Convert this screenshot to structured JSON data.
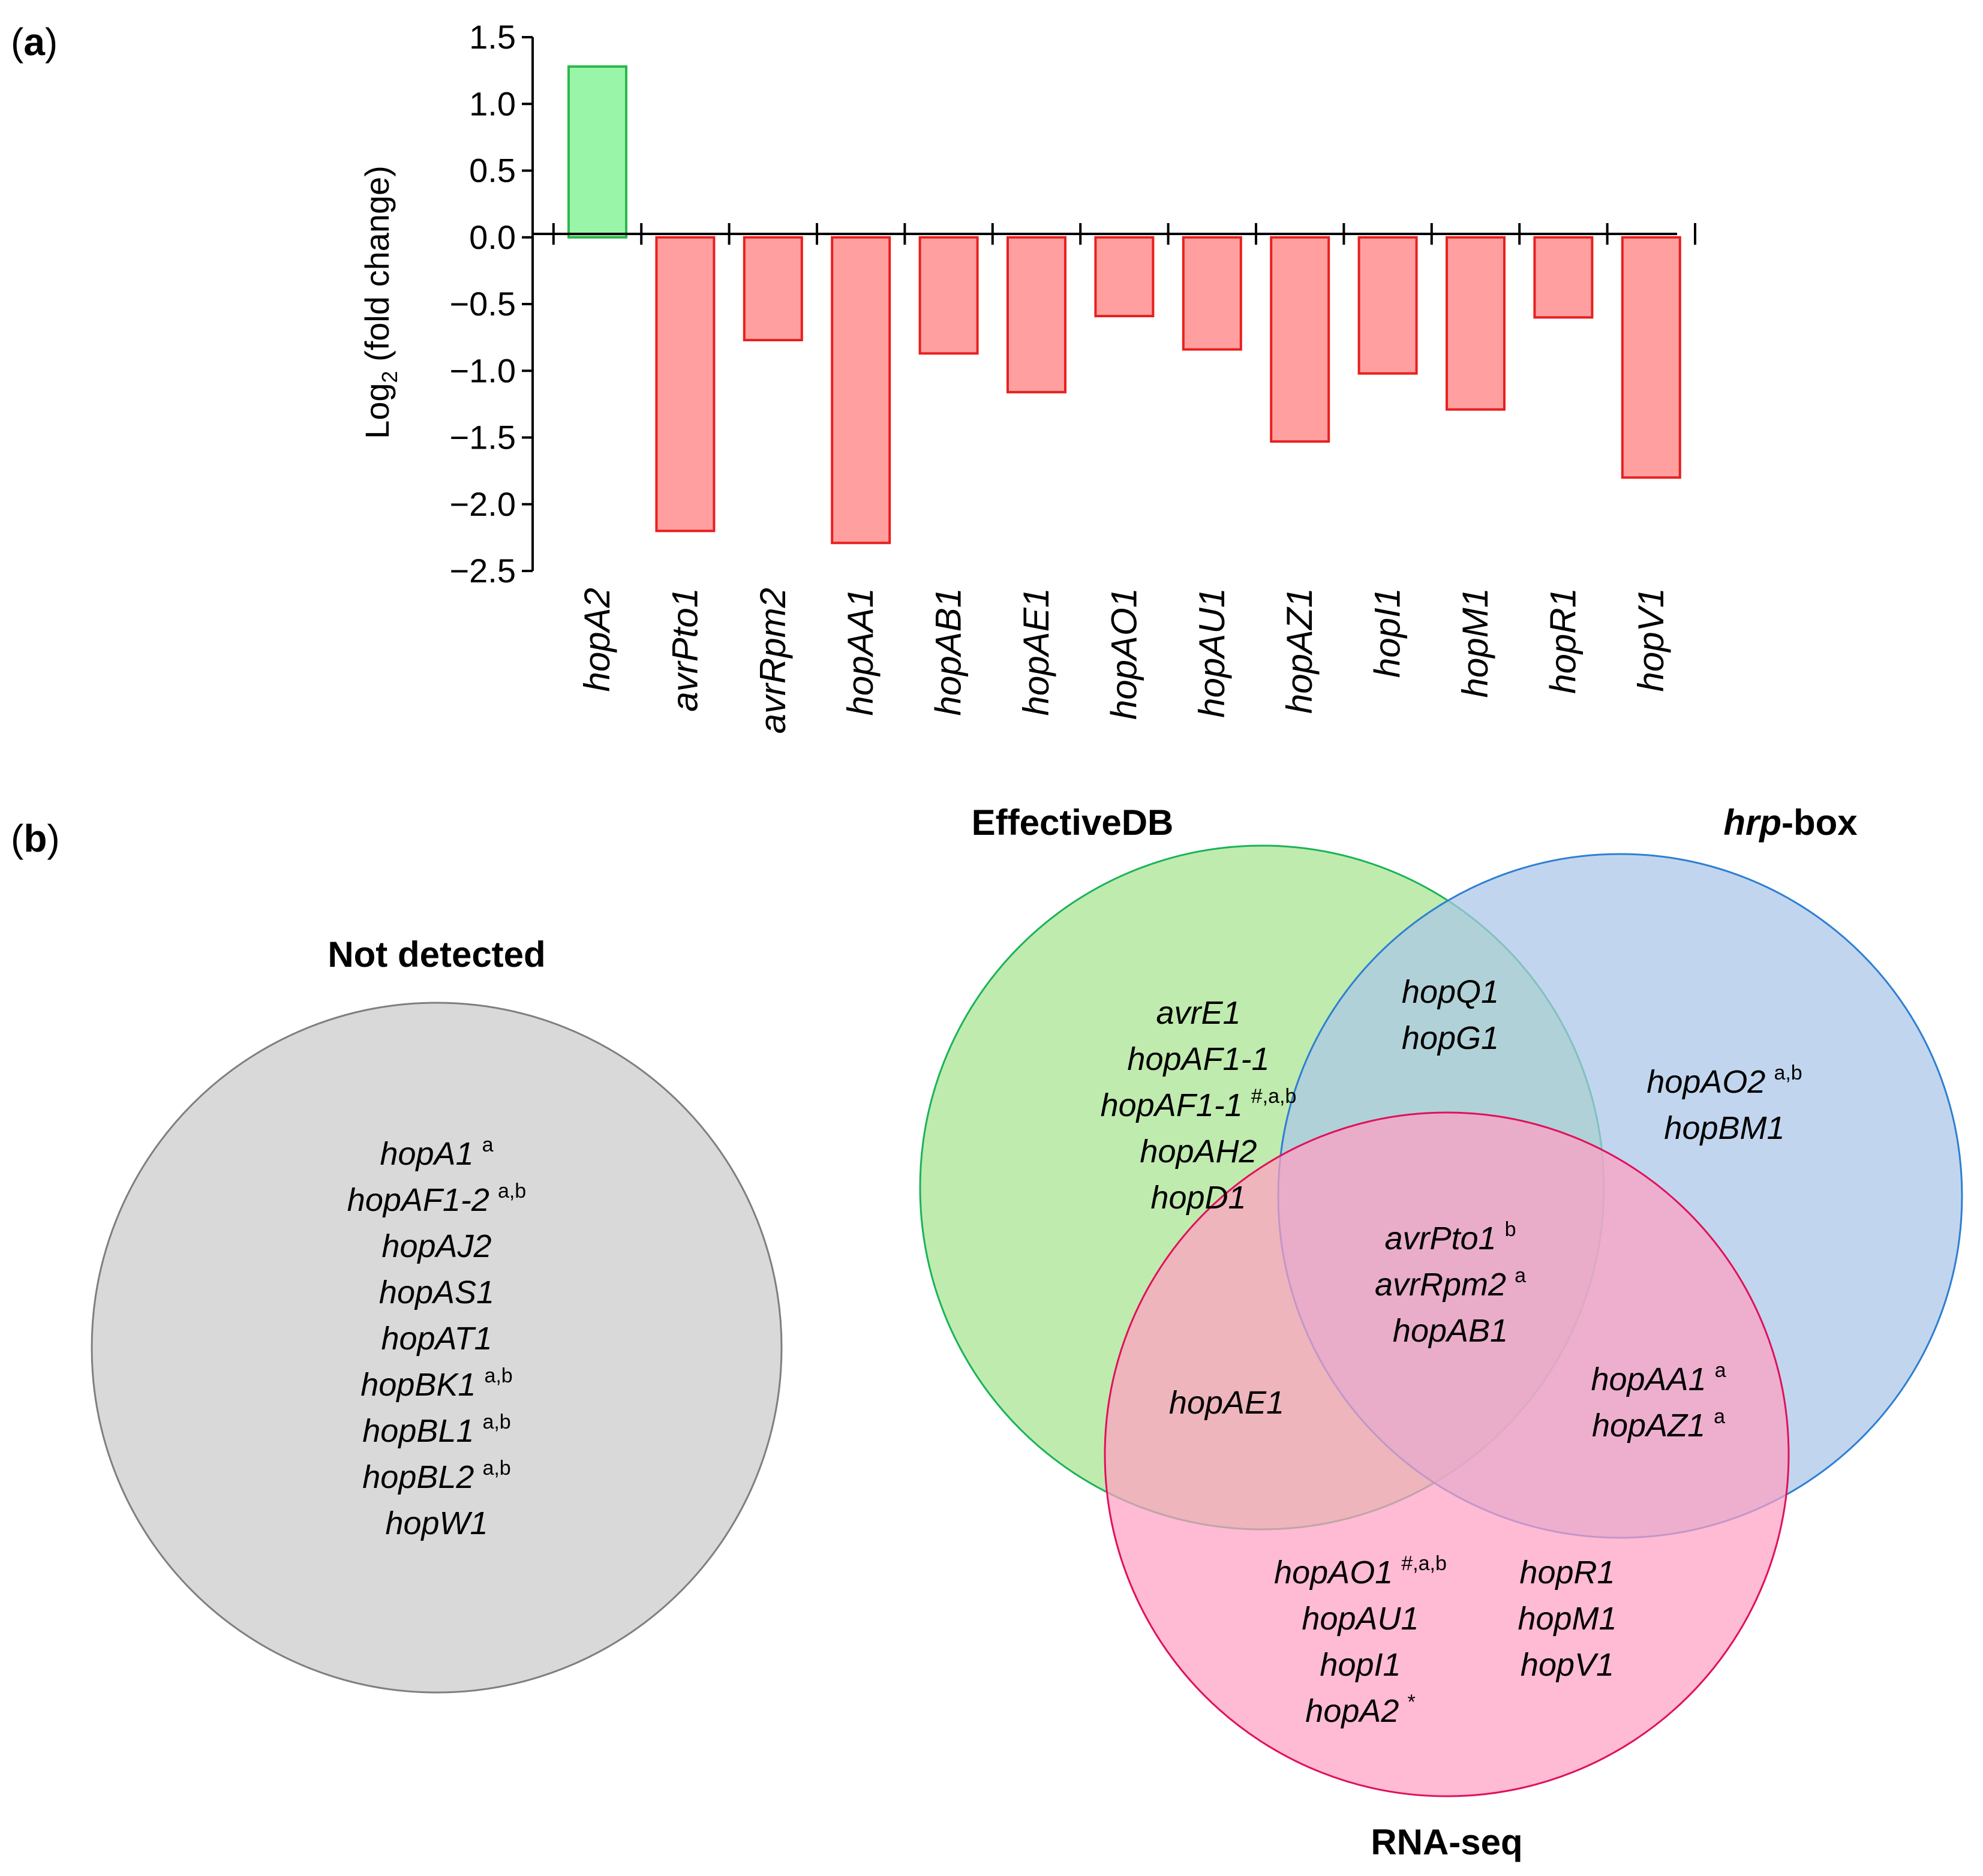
{
  "panel_a": {
    "label_open": "(",
    "label_letter": "a",
    "label_close": ")"
  },
  "panel_b": {
    "label_open": "(",
    "label_letter": "b",
    "label_close": ")"
  },
  "chart_data": {
    "type": "bar",
    "title": "",
    "xlabel": "",
    "ylabel_prefix": "Log",
    "ylabel_sub": "2",
    "ylabel_suffix": " (fold change)",
    "ylim": [
      -2.5,
      1.5
    ],
    "yticks": [
      1.5,
      1.0,
      0.5,
      0.0,
      -0.5,
      -1.0,
      -1.5,
      -2.0,
      -2.5
    ],
    "ytick_labels": [
      "1.5",
      "1.0",
      "0.5",
      "0.0",
      "−0.5",
      "−1.0",
      "−1.5",
      "−2.0",
      "−2.5"
    ],
    "categories": [
      "hopA2",
      "avrPto1",
      "avrRpm2",
      "hopAA1",
      "hopAB1",
      "hopAE1",
      "hopAO1",
      "hopAU1",
      "hopAZ1",
      "hopI1",
      "hopM1",
      "hopR1",
      "hopV1"
    ],
    "values": [
      1.28,
      -2.2,
      -0.77,
      -2.29,
      -0.87,
      -1.16,
      -0.59,
      -0.84,
      -1.53,
      -1.02,
      -1.29,
      -0.6,
      -1.8
    ],
    "colors": {
      "positive_fill": "#99f5a8",
      "positive_stroke": "#2ab84c",
      "negative_fill": "#ff9f9f",
      "negative_stroke": "#e8201f"
    },
    "grid": false
  },
  "not_detected": {
    "title": "Not detected",
    "fill": "#d9d9d9",
    "stroke": "#7f7f7f",
    "genes": [
      {
        "name": "hopA1",
        "sup": "a"
      },
      {
        "name": "hopAF1-2",
        "sup": "a,b"
      },
      {
        "name": "hopAJ2",
        "sup": ""
      },
      {
        "name": "hopAS1",
        "sup": ""
      },
      {
        "name": "hopAT1",
        "sup": ""
      },
      {
        "name": "hopBK1",
        "sup": "a,b"
      },
      {
        "name": "hopBL1",
        "sup": "a,b"
      },
      {
        "name": "hopBL2",
        "sup": "a,b"
      },
      {
        "name": "hopW1",
        "sup": ""
      }
    ]
  },
  "venn": {
    "sets": [
      {
        "name": "EffectiveDB",
        "fill": "#a8e38f",
        "stroke": "#19b35a"
      },
      {
        "name_italic": "hrp",
        "name_rest": "-box",
        "fill": "#a9c6e8",
        "stroke": "#2e7fd1"
      },
      {
        "name": "RNA-seq",
        "fill": "#ff9fc4",
        "stroke": "#e0105a"
      }
    ],
    "regions": {
      "effective_only": [
        {
          "name": "avrE1",
          "sup": ""
        },
        {
          "name": "hopAF1-1",
          "sup": ""
        },
        {
          "name": "hopAF1-1",
          "sup": "#,a,b"
        },
        {
          "name": "hopAH2",
          "sup": ""
        },
        {
          "name": "hopD1",
          "sup": ""
        }
      ],
      "effective_hrp": [
        {
          "name": "hopQ1",
          "sup": ""
        },
        {
          "name": "hopG1",
          "sup": ""
        }
      ],
      "hrp_only": [
        {
          "name": "hopAO2",
          "sup": "a,b"
        },
        {
          "name": "hopBM1",
          "sup": ""
        }
      ],
      "all_three": [
        {
          "name": "avrPto1",
          "sup": "b"
        },
        {
          "name": "avrRpm2",
          "sup": "a"
        },
        {
          "name": "hopAB1",
          "sup": ""
        }
      ],
      "effective_rna": [
        {
          "name": "hopAE1",
          "sup": ""
        }
      ],
      "hrp_rna": [
        {
          "name": "hopAA1",
          "sup": "a"
        },
        {
          "name": "hopAZ1",
          "sup": "a"
        }
      ],
      "rna_only_left": [
        {
          "name": "hopAO1",
          "sup": "#,a,b"
        },
        {
          "name": "hopAU1",
          "sup": ""
        },
        {
          "name": "hopI1",
          "sup": ""
        },
        {
          "name": "hopA2",
          "sup": "*"
        }
      ],
      "rna_only_right": [
        {
          "name": "hopR1",
          "sup": ""
        },
        {
          "name": "hopM1",
          "sup": ""
        },
        {
          "name": "hopV1",
          "sup": ""
        }
      ]
    }
  }
}
